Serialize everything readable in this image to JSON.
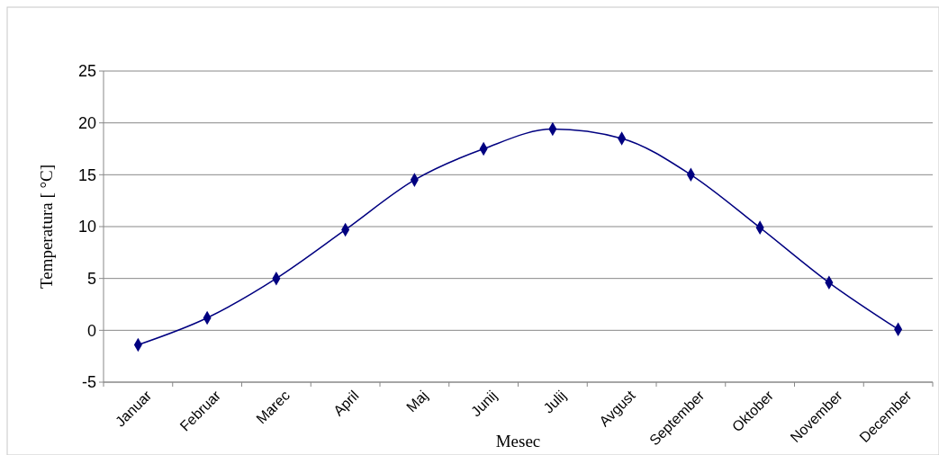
{
  "chart_data": {
    "type": "line",
    "xlabel": "Mesec",
    "ylabel": "Temperatura [ °C]",
    "categories": [
      "Januar",
      "Februar",
      "Marec",
      "April",
      "Maj",
      "Junij",
      "Julij",
      "Avgust",
      "September",
      "Oktober",
      "November",
      "December"
    ],
    "series": [
      {
        "color": "#000080",
        "values": [
          -1.4,
          1.2,
          5.0,
          9.7,
          14.5,
          17.5,
          19.4,
          18.5,
          15.0,
          9.9,
          4.6,
          0.1
        ]
      }
    ],
    "ylim": [
      -5,
      25
    ],
    "yticks": [
      -5,
      0,
      5,
      10,
      15,
      20,
      25
    ],
    "grid": "y",
    "marker": "diamond",
    "line_style": "solid"
  }
}
